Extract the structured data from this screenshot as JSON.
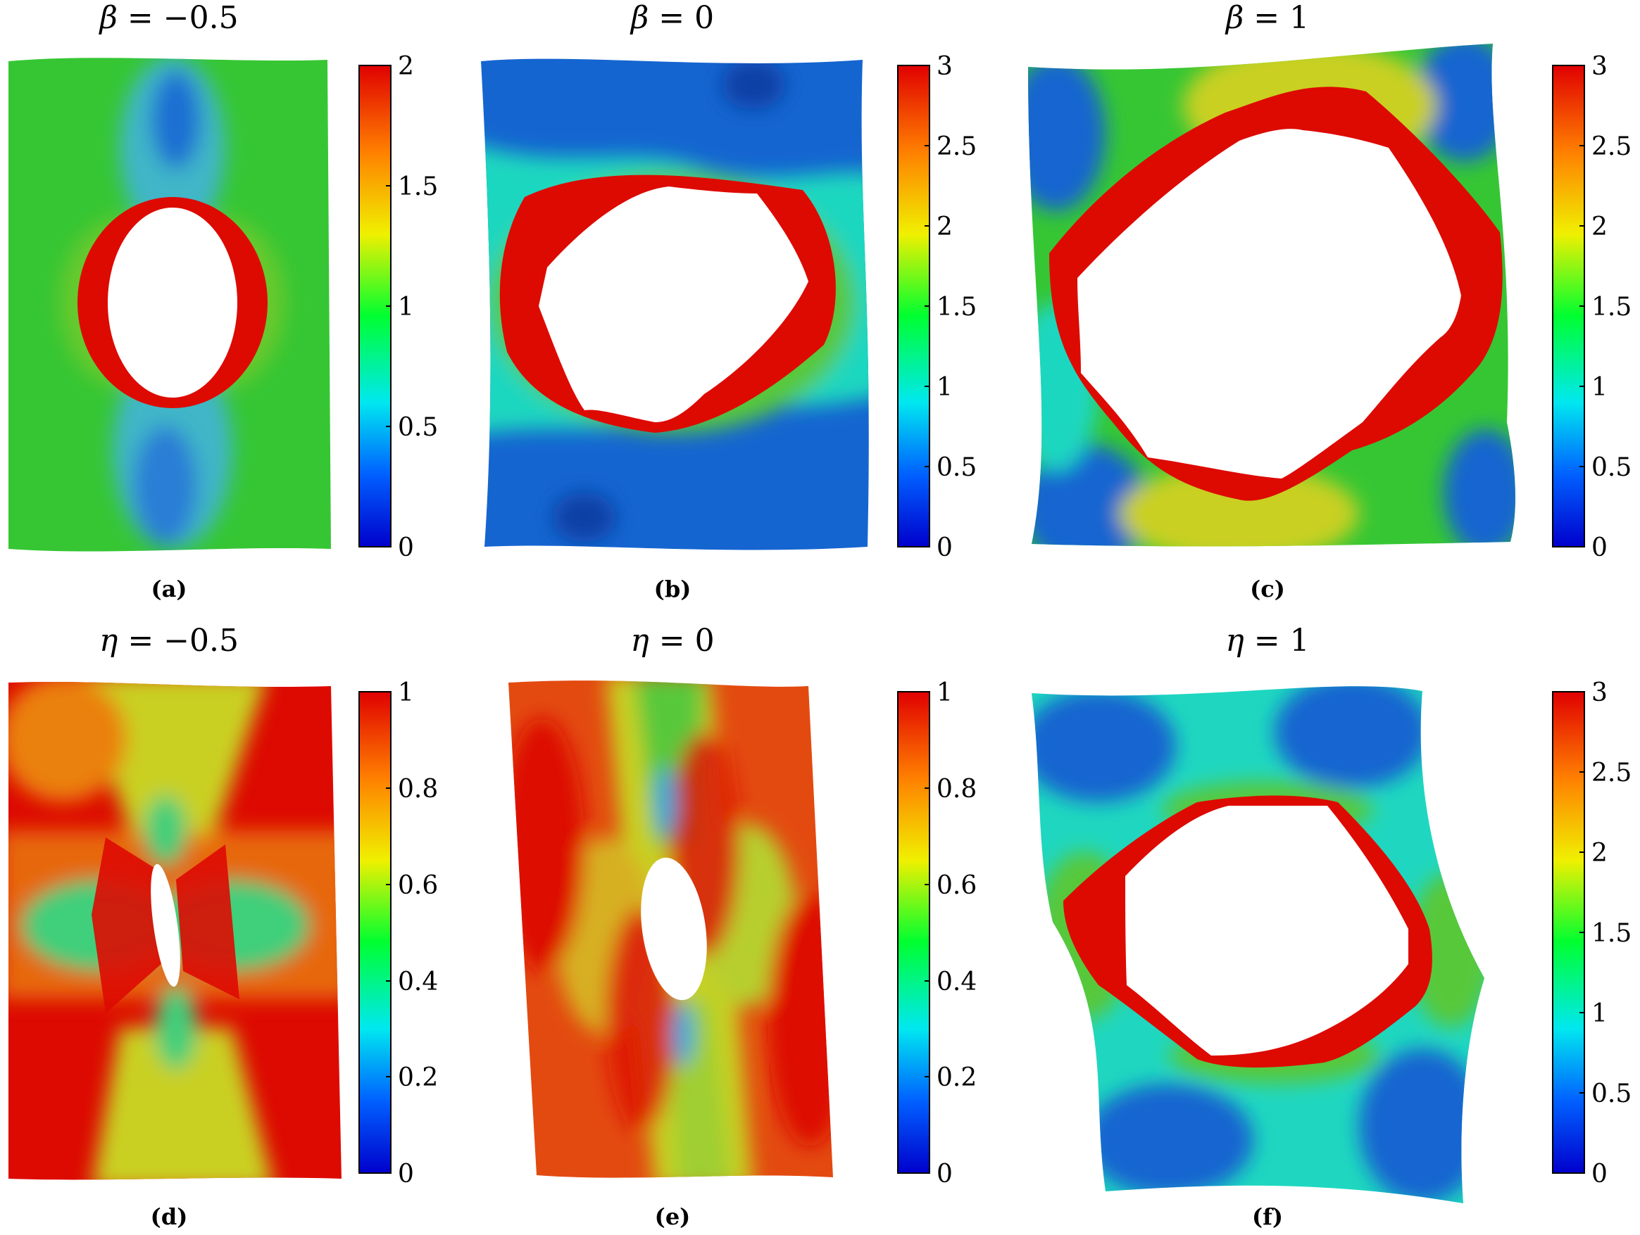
{
  "figure": {
    "panels": [
      {
        "id": "a",
        "caption": "(a)",
        "symbol": "β",
        "param_value": "−0.5",
        "colorbar": {
          "ticks": [
            "0",
            "0.5",
            "1",
            "1.5",
            "2"
          ],
          "min": 0,
          "max": 2
        }
      },
      {
        "id": "b",
        "caption": "(b)",
        "symbol": "β",
        "param_value": "0",
        "colorbar": {
          "ticks": [
            "0",
            "0.5",
            "1",
            "1.5",
            "2",
            "2.5",
            "3"
          ],
          "min": 0,
          "max": 3
        }
      },
      {
        "id": "c",
        "caption": "(c)",
        "symbol": "β",
        "param_value": "1",
        "colorbar": {
          "ticks": [
            "0",
            "0.5",
            "1",
            "1.5",
            "2",
            "2.5",
            "3"
          ],
          "min": 0,
          "max": 3
        }
      },
      {
        "id": "d",
        "caption": "(d)",
        "symbol": "η",
        "param_value": "−0.5",
        "colorbar": {
          "ticks": [
            "0",
            "0.2",
            "0.4",
            "0.6",
            "0.8",
            "1"
          ],
          "min": 0,
          "max": 1
        }
      },
      {
        "id": "e",
        "caption": "(e)",
        "symbol": "η",
        "param_value": "0",
        "colorbar": {
          "ticks": [
            "0",
            "0.2",
            "0.4",
            "0.6",
            "0.8",
            "1"
          ],
          "min": 0,
          "max": 1
        }
      },
      {
        "id": "f",
        "caption": "(f)",
        "symbol": "η",
        "param_value": "1",
        "colorbar": {
          "ticks": [
            "0",
            "0.5",
            "1",
            "1.5",
            "2",
            "2.5",
            "3"
          ],
          "min": 0,
          "max": 3
        }
      }
    ],
    "colormap": [
      "#0000cc",
      "#0060ff",
      "#00e8f0",
      "#00ff30",
      "#f0f000",
      "#ff8000",
      "#e00000"
    ],
    "colors": {
      "green": "#36c634",
      "blue": "#1565d0",
      "cyan": "#1fd7c0",
      "red": "#dd0a02",
      "orange": "#ea8010",
      "yellow": "#c9d022"
    }
  }
}
